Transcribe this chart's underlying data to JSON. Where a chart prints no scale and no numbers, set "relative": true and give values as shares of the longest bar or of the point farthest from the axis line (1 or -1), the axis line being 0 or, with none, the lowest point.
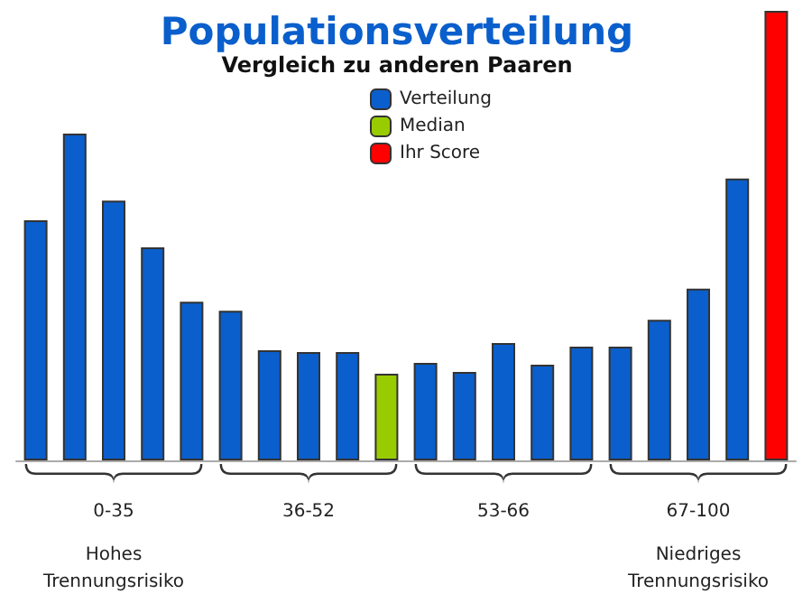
{
  "chart_data": {
    "type": "bar",
    "title": "Populationsverteilung",
    "subtitle": "Vergleich zu anderen Paaren",
    "relative": true,
    "categories": [
      null,
      null,
      null,
      null,
      null,
      null,
      null,
      null,
      null,
      null,
      null,
      null,
      null,
      null,
      null,
      null,
      null,
      null,
      null,
      null
    ],
    "series": [
      {
        "name": "Verteilung",
        "color": "#0a5fcc",
        "values": [
          0.534,
          0.727,
          0.578,
          0.474,
          0.353,
          0.333,
          0.245,
          0.241,
          0.241,
          null,
          0.217,
          0.197,
          0.261,
          0.213,
          0.253,
          0.253,
          0.313,
          0.382,
          0.627,
          null
        ]
      },
      {
        "name": "Median",
        "color": "#99cc00",
        "values": [
          null,
          null,
          null,
          null,
          null,
          null,
          null,
          null,
          null,
          0.193,
          null,
          null,
          null,
          null,
          null,
          null,
          null,
          null,
          null,
          null
        ]
      },
      {
        "name": "Ihr Score",
        "color": "#ff0000",
        "values": [
          null,
          null,
          null,
          null,
          null,
          null,
          null,
          null,
          null,
          null,
          null,
          null,
          null,
          null,
          null,
          null,
          null,
          null,
          null,
          1
        ]
      }
    ],
    "legend": "top",
    "grid": false,
    "stacked": true,
    "annotations": [
      "0-35",
      "36-52",
      "53-66",
      "67-100",
      "Hohes Trennungsrisiko",
      "Niedriges Trennungsrisiko"
    ]
  }
}
